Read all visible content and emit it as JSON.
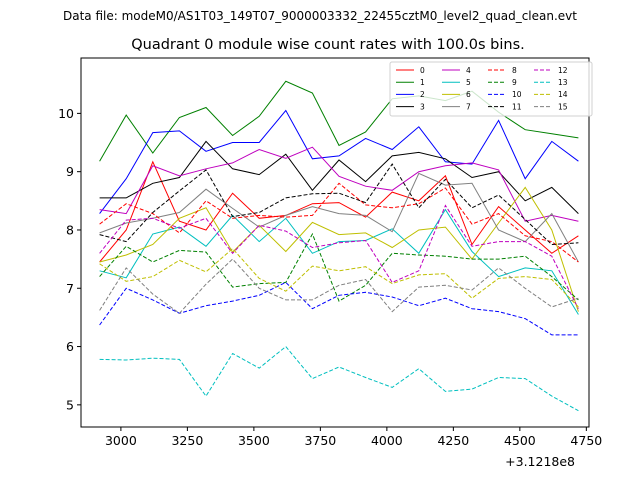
{
  "figure": {
    "suptitle": "Data file: modeM0/AS1T03_149T07_9000003332_22455cztM0_level2_quad_clean.evt"
  },
  "chart_data": {
    "type": "line",
    "title": "Quadrant 0 module wise count rates with 100.0s bins.",
    "xlabel": "",
    "ylabel": "",
    "x_offset_label": "+3.1218e8",
    "x_offset": 312180000,
    "xlim": [
      2850,
      4760
    ],
    "ylim": [
      4.62,
      10.95
    ],
    "xticks": [
      3000,
      3250,
      3500,
      3750,
      4000,
      4250,
      4500,
      4750
    ],
    "yticks": [
      5,
      6,
      7,
      8,
      9,
      10
    ],
    "grid": false,
    "legend": {
      "placement": "top-right",
      "ncol": 4
    },
    "x": [
      2920,
      3020,
      3120,
      3220,
      3320,
      3420,
      3520,
      3620,
      3720,
      3820,
      3920,
      4020,
      4120,
      4220,
      4320,
      4420,
      4520,
      4620,
      4720
    ],
    "series": [
      {
        "name": "0",
        "color": "#ff0000",
        "dash": "solid",
        "values": [
          7.45,
          8.0,
          9.17,
          8.15,
          8.0,
          8.63,
          8.2,
          8.25,
          8.45,
          8.47,
          8.22,
          8.65,
          8.5,
          8.93,
          7.75,
          8.4,
          8.0,
          7.6,
          7.9
        ]
      },
      {
        "name": "1",
        "color": "#008000",
        "dash": "solid",
        "values": [
          9.18,
          9.97,
          9.32,
          9.93,
          10.1,
          9.62,
          9.95,
          10.55,
          10.35,
          9.45,
          9.68,
          10.25,
          10.3,
          10.22,
          10.38,
          10.02,
          9.72,
          9.65,
          9.58
        ]
      },
      {
        "name": "2",
        "color": "#0000ff",
        "dash": "solid",
        "values": [
          8.28,
          8.88,
          9.67,
          9.7,
          9.35,
          9.5,
          9.5,
          10.05,
          9.22,
          9.27,
          9.57,
          9.38,
          9.77,
          9.17,
          9.13,
          9.88,
          8.88,
          9.52,
          9.18
        ]
      },
      {
        "name": "3",
        "color": "#000000",
        "dash": "solid",
        "values": [
          8.55,
          8.55,
          8.8,
          8.9,
          9.52,
          9.05,
          8.95,
          9.3,
          8.68,
          9.2,
          8.83,
          9.27,
          9.33,
          9.22,
          8.9,
          9.0,
          8.5,
          8.73,
          8.28
        ]
      },
      {
        "name": "4",
        "color": "#bf00bf",
        "dash": "solid",
        "values": [
          8.35,
          8.28,
          9.1,
          8.93,
          9.05,
          9.15,
          9.38,
          9.23,
          9.42,
          8.92,
          8.75,
          8.68,
          9.0,
          9.1,
          9.15,
          9.03,
          8.15,
          8.25,
          8.15
        ]
      },
      {
        "name": "5",
        "color": "#00bfbf",
        "dash": "solid",
        "values": [
          7.3,
          7.18,
          7.93,
          8.05,
          7.72,
          8.25,
          7.8,
          8.2,
          7.6,
          7.8,
          7.82,
          8.02,
          7.6,
          8.35,
          7.63,
          7.2,
          7.35,
          7.3,
          6.55
        ]
      },
      {
        "name": "6",
        "color": "#bfbf00",
        "dash": "solid",
        "values": [
          7.45,
          7.57,
          7.75,
          8.2,
          8.38,
          7.62,
          8.08,
          7.63,
          8.13,
          7.92,
          7.95,
          7.7,
          8.0,
          8.05,
          7.5,
          8.12,
          8.73,
          8.0,
          6.6
        ]
      },
      {
        "name": "7",
        "color": "#808080",
        "dash": "solid",
        "values": [
          7.95,
          8.12,
          8.2,
          8.3,
          8.7,
          8.37,
          8.05,
          8.25,
          8.4,
          8.28,
          8.25,
          7.97,
          8.97,
          8.77,
          8.8,
          8.0,
          7.8,
          8.28,
          7.45
        ]
      },
      {
        "name": "8",
        "color": "#ff0000",
        "dash": "dashed",
        "values": [
          8.1,
          8.45,
          8.28,
          7.95,
          8.5,
          8.2,
          8.25,
          8.22,
          8.25,
          8.8,
          8.43,
          8.38,
          8.45,
          8.72,
          8.1,
          8.28,
          7.9,
          7.8,
          7.45
        ]
      },
      {
        "name": "9",
        "color": "#008000",
        "dash": "dashed",
        "values": [
          7.2,
          7.72,
          7.45,
          7.65,
          7.62,
          7.02,
          7.08,
          7.1,
          7.93,
          6.78,
          7.05,
          7.6,
          7.57,
          7.55,
          7.5,
          7.5,
          7.55,
          7.2,
          6.8
        ]
      },
      {
        "name": "10",
        "color": "#0000ff",
        "dash": "dashed",
        "values": [
          6.37,
          7.0,
          6.8,
          6.57,
          6.7,
          6.78,
          6.88,
          7.1,
          6.65,
          6.88,
          6.93,
          6.85,
          6.7,
          6.83,
          6.65,
          6.6,
          6.48,
          6.2,
          6.2
        ]
      },
      {
        "name": "11",
        "color": "#000000",
        "dash": "dashed",
        "values": [
          7.92,
          7.8,
          8.3,
          8.67,
          9.03,
          8.23,
          8.3,
          8.55,
          8.62,
          8.63,
          8.47,
          9.13,
          8.38,
          8.87,
          8.38,
          8.6,
          8.18,
          7.75,
          7.78
        ]
      },
      {
        "name": "12",
        "color": "#bf00bf",
        "dash": "dashed",
        "values": [
          7.6,
          8.17,
          8.2,
          8.03,
          8.2,
          7.6,
          8.08,
          7.98,
          7.7,
          7.78,
          7.82,
          7.1,
          7.3,
          8.42,
          7.72,
          7.8,
          7.8,
          7.55,
          6.65
        ]
      },
      {
        "name": "13",
        "color": "#00bfbf",
        "dash": "dashed",
        "values": [
          5.78,
          5.77,
          5.8,
          5.78,
          5.15,
          5.88,
          5.63,
          6.0,
          5.45,
          5.65,
          5.47,
          5.3,
          5.62,
          5.23,
          5.27,
          5.47,
          5.45,
          5.15,
          4.9
        ]
      },
      {
        "name": "14",
        "color": "#bfbf00",
        "dash": "dashed",
        "values": [
          7.42,
          7.12,
          7.2,
          7.48,
          7.28,
          7.68,
          7.17,
          6.95,
          7.38,
          7.3,
          7.37,
          7.08,
          7.23,
          7.25,
          6.83,
          7.17,
          7.2,
          7.15,
          6.68
        ]
      },
      {
        "name": "15",
        "color": "#808080",
        "dash": "dashed",
        "values": [
          6.62,
          7.35,
          6.9,
          6.57,
          7.07,
          7.5,
          7.0,
          6.8,
          6.8,
          7.05,
          7.15,
          6.6,
          7.02,
          7.05,
          6.97,
          7.35,
          7.0,
          6.68,
          6.83
        ]
      }
    ]
  }
}
